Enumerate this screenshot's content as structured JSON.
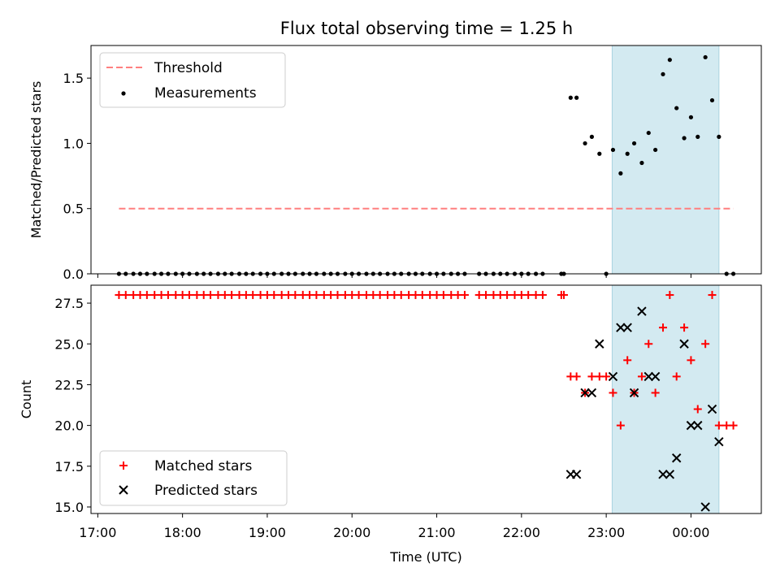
{
  "title": "Flux total observing time = 1.25 h",
  "colors": {
    "span": "#d3eaf1",
    "threshold": "#ff7f7f",
    "matched": "#ff0000",
    "predicted": "#000000",
    "measurement": "#000000"
  },
  "chart_data": [
    {
      "type": "scatter",
      "ylabel": "Matched/Predicted stars",
      "xlabel": "",
      "xlim_hours": [
        16.92,
        24.83
      ],
      "ylim": [
        0,
        1.75
      ],
      "yticks": [
        0.0,
        0.5,
        1.0,
        1.5
      ],
      "ytick_labels": [
        "0.0",
        "0.5",
        "1.0",
        "1.5"
      ],
      "legend_placement": "upper-left",
      "shaded_span_hours": [
        23.07,
        24.33
      ],
      "threshold": {
        "name": "Threshold",
        "y": 0.5,
        "x_range_hours": [
          17.25,
          24.5
        ],
        "style": "dashed"
      },
      "measurements": {
        "name": "Measurements",
        "points": [
          [
            17.25,
            0
          ],
          [
            17.33,
            0
          ],
          [
            17.42,
            0
          ],
          [
            17.5,
            0
          ],
          [
            17.58,
            0
          ],
          [
            17.67,
            0
          ],
          [
            17.75,
            0
          ],
          [
            17.83,
            0
          ],
          [
            17.92,
            0
          ],
          [
            18.0,
            0
          ],
          [
            18.08,
            0
          ],
          [
            18.17,
            0
          ],
          [
            18.25,
            0
          ],
          [
            18.33,
            0
          ],
          [
            18.42,
            0
          ],
          [
            18.5,
            0
          ],
          [
            18.58,
            0
          ],
          [
            18.67,
            0
          ],
          [
            18.75,
            0
          ],
          [
            18.83,
            0
          ],
          [
            18.92,
            0
          ],
          [
            19.0,
            0
          ],
          [
            19.08,
            0
          ],
          [
            19.17,
            0
          ],
          [
            19.25,
            0
          ],
          [
            19.33,
            0
          ],
          [
            19.42,
            0
          ],
          [
            19.5,
            0
          ],
          [
            19.58,
            0
          ],
          [
            19.67,
            0
          ],
          [
            19.75,
            0
          ],
          [
            19.83,
            0
          ],
          [
            19.92,
            0
          ],
          [
            20.0,
            0
          ],
          [
            20.08,
            0
          ],
          [
            20.17,
            0
          ],
          [
            20.25,
            0
          ],
          [
            20.33,
            0
          ],
          [
            20.42,
            0
          ],
          [
            20.5,
            0
          ],
          [
            20.58,
            0
          ],
          [
            20.67,
            0
          ],
          [
            20.75,
            0
          ],
          [
            20.83,
            0
          ],
          [
            20.92,
            0
          ],
          [
            21.0,
            0
          ],
          [
            21.08,
            0
          ],
          [
            21.17,
            0
          ],
          [
            21.25,
            0
          ],
          [
            21.33,
            0
          ],
          [
            21.5,
            0
          ],
          [
            21.58,
            0
          ],
          [
            21.67,
            0
          ],
          [
            21.75,
            0
          ],
          [
            21.83,
            0
          ],
          [
            21.92,
            0
          ],
          [
            22.0,
            0
          ],
          [
            22.08,
            0
          ],
          [
            22.17,
            0
          ],
          [
            22.25,
            0
          ],
          [
            22.47,
            0
          ],
          [
            22.5,
            0
          ],
          [
            22.58,
            1.35
          ],
          [
            22.65,
            1.35
          ],
          [
            22.75,
            1.0
          ],
          [
            22.83,
            1.05
          ],
          [
            22.92,
            0.92
          ],
          [
            23.0,
            0
          ],
          [
            23.08,
            0.95
          ],
          [
            23.17,
            0.77
          ],
          [
            23.25,
            0.92
          ],
          [
            23.33,
            1.0
          ],
          [
            23.42,
            0.85
          ],
          [
            23.5,
            1.08
          ],
          [
            23.58,
            0.95
          ],
          [
            23.67,
            1.53
          ],
          [
            23.75,
            1.64
          ],
          [
            23.83,
            1.27
          ],
          [
            23.92,
            1.04
          ],
          [
            24.0,
            1.2
          ],
          [
            24.08,
            1.05
          ],
          [
            24.17,
            1.66
          ],
          [
            24.25,
            1.33
          ],
          [
            24.33,
            1.05
          ],
          [
            24.42,
            0
          ],
          [
            24.5,
            0
          ]
        ]
      }
    },
    {
      "type": "scatter",
      "ylabel": "Count",
      "xlabel": "Time (UTC)",
      "xlim_hours": [
        16.92,
        24.83
      ],
      "ylim": [
        14.6,
        28.6
      ],
      "yticks": [
        15.0,
        17.5,
        20.0,
        22.5,
        25.0,
        27.5
      ],
      "ytick_labels": [
        "15.0",
        "17.5",
        "20.0",
        "22.5",
        "25.0",
        "27.5"
      ],
      "xticks_hours": [
        17,
        18,
        19,
        20,
        21,
        22,
        23,
        24
      ],
      "xtick_labels": [
        "17:00",
        "18:00",
        "19:00",
        "20:00",
        "21:00",
        "22:00",
        "23:00",
        "00:00"
      ],
      "legend_placement": "lower-left",
      "shaded_span_hours": [
        23.07,
        24.33
      ],
      "series": [
        {
          "name": "Matched stars",
          "marker": "plus",
          "points": [
            [
              17.25,
              28
            ],
            [
              17.33,
              28
            ],
            [
              17.42,
              28
            ],
            [
              17.5,
              28
            ],
            [
              17.58,
              28
            ],
            [
              17.67,
              28
            ],
            [
              17.75,
              28
            ],
            [
              17.83,
              28
            ],
            [
              17.92,
              28
            ],
            [
              18.0,
              28
            ],
            [
              18.08,
              28
            ],
            [
              18.17,
              28
            ],
            [
              18.25,
              28
            ],
            [
              18.33,
              28
            ],
            [
              18.42,
              28
            ],
            [
              18.5,
              28
            ],
            [
              18.58,
              28
            ],
            [
              18.67,
              28
            ],
            [
              18.75,
              28
            ],
            [
              18.83,
              28
            ],
            [
              18.92,
              28
            ],
            [
              19.0,
              28
            ],
            [
              19.08,
              28
            ],
            [
              19.17,
              28
            ],
            [
              19.25,
              28
            ],
            [
              19.33,
              28
            ],
            [
              19.42,
              28
            ],
            [
              19.5,
              28
            ],
            [
              19.58,
              28
            ],
            [
              19.67,
              28
            ],
            [
              19.75,
              28
            ],
            [
              19.83,
              28
            ],
            [
              19.92,
              28
            ],
            [
              20.0,
              28
            ],
            [
              20.08,
              28
            ],
            [
              20.17,
              28
            ],
            [
              20.25,
              28
            ],
            [
              20.33,
              28
            ],
            [
              20.42,
              28
            ],
            [
              20.5,
              28
            ],
            [
              20.58,
              28
            ],
            [
              20.67,
              28
            ],
            [
              20.75,
              28
            ],
            [
              20.83,
              28
            ],
            [
              20.92,
              28
            ],
            [
              21.0,
              28
            ],
            [
              21.08,
              28
            ],
            [
              21.17,
              28
            ],
            [
              21.25,
              28
            ],
            [
              21.33,
              28
            ],
            [
              21.5,
              28
            ],
            [
              21.58,
              28
            ],
            [
              21.67,
              28
            ],
            [
              21.75,
              28
            ],
            [
              21.83,
              28
            ],
            [
              21.92,
              28
            ],
            [
              22.0,
              28
            ],
            [
              22.08,
              28
            ],
            [
              22.17,
              28
            ],
            [
              22.25,
              28
            ],
            [
              22.47,
              28
            ],
            [
              22.5,
              28
            ],
            [
              22.58,
              23
            ],
            [
              22.65,
              23
            ],
            [
              22.75,
              22
            ],
            [
              22.83,
              23
            ],
            [
              22.92,
              23
            ],
            [
              23.0,
              23
            ],
            [
              23.08,
              22
            ],
            [
              23.17,
              20
            ],
            [
              23.25,
              24
            ],
            [
              23.33,
              22
            ],
            [
              23.42,
              23
            ],
            [
              23.5,
              25
            ],
            [
              23.58,
              22
            ],
            [
              23.67,
              26
            ],
            [
              23.75,
              28
            ],
            [
              23.83,
              23
            ],
            [
              23.92,
              26
            ],
            [
              24.0,
              24
            ],
            [
              24.08,
              21
            ],
            [
              24.17,
              25
            ],
            [
              24.25,
              28
            ],
            [
              24.33,
              20
            ],
            [
              24.42,
              20
            ],
            [
              24.5,
              20
            ]
          ]
        },
        {
          "name": "Predicted stars",
          "marker": "x",
          "points": [
            [
              22.58,
              17
            ],
            [
              22.65,
              17
            ],
            [
              22.75,
              22
            ],
            [
              22.83,
              22
            ],
            [
              22.92,
              25
            ],
            [
              23.08,
              23
            ],
            [
              23.17,
              26
            ],
            [
              23.25,
              26
            ],
            [
              23.33,
              22
            ],
            [
              23.42,
              27
            ],
            [
              23.5,
              23
            ],
            [
              23.58,
              23
            ],
            [
              23.67,
              17
            ],
            [
              23.75,
              17
            ],
            [
              23.83,
              18
            ],
            [
              23.92,
              25
            ],
            [
              24.0,
              20
            ],
            [
              24.08,
              20
            ],
            [
              24.17,
              15
            ],
            [
              24.25,
              21
            ],
            [
              24.33,
              19
            ]
          ]
        }
      ]
    }
  ]
}
